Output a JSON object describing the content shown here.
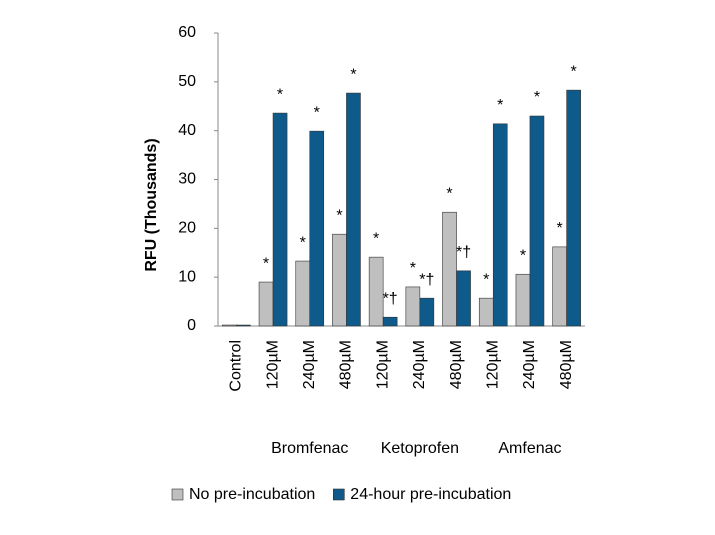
{
  "chart_data": {
    "type": "bar",
    "y_label": "RFU (Thousands)",
    "categories": [
      "Control",
      "120µM",
      "240µM",
      "480µM",
      "120µM",
      "240µM",
      "480µM",
      "120µM",
      "240µM",
      "480µM"
    ],
    "groups": [
      "Bromfenac",
      "Ketoprofen",
      "Amfenac"
    ],
    "series": [
      {
        "name": "No pre-incubation",
        "color": "#bfbfbf",
        "values": [
          0.2,
          9.0,
          13.3,
          18.8,
          14.1,
          8.0,
          23.3,
          5.7,
          10.6,
          16.2
        ],
        "annotations": [
          null,
          "*",
          "*",
          "*",
          "*",
          "*",
          "*",
          "*",
          "*",
          "*"
        ]
      },
      {
        "name": "24-hour pre-incubation",
        "color": "#0e5a8a",
        "values": [
          0.2,
          43.6,
          39.9,
          47.7,
          1.8,
          5.7,
          11.3,
          41.4,
          43.0,
          48.3
        ],
        "annotations": [
          null,
          "*",
          "*",
          "*",
          "*†",
          "*†",
          "*†",
          "*",
          "*",
          "*"
        ]
      }
    ],
    "ylim": [
      0,
      60
    ],
    "yticks": [
      0,
      10,
      20,
      30,
      40,
      50,
      60
    ],
    "grid": false,
    "legend": "bottom"
  }
}
